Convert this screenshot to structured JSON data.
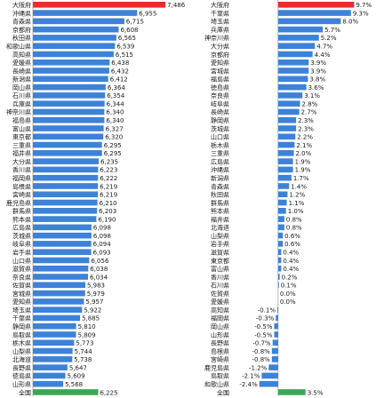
{
  "chart_data": [
    {
      "type": "bar",
      "orientation": "horizontal",
      "categories": [
        "大阪府",
        "沖縄県",
        "青森県",
        "京都府",
        "秋田県",
        "和歌山県",
        "高知県",
        "愛媛県",
        "長崎県",
        "新潟県",
        "岡山県",
        "石川県",
        "兵庫県",
        "神奈川県",
        "福島県",
        "富山県",
        "東京都",
        "三重県",
        "福井県",
        "大分県",
        "香川県",
        "福岡県",
        "島根県",
        "宮崎県",
        "鹿児島県",
        "群馬県",
        "熊本県",
        "広島県",
        "茨城県",
        "岐阜県",
        "岩手県",
        "山口県",
        "滋賀県",
        "奈良県",
        "佐賀県",
        "宮城県",
        "愛知県",
        "埼玉県",
        "千葉県",
        "静岡県",
        "鳥取県",
        "栃木県",
        "山梨県",
        "北海道",
        "長野県",
        "徳島県",
        "山形県",
        "全国"
      ],
      "values": [
        7486,
        6955,
        6715,
        6608,
        6565,
        6539,
        6515,
        6438,
        6432,
        6412,
        6364,
        6354,
        6344,
        6340,
        6340,
        6327,
        6320,
        6295,
        6295,
        6235,
        6223,
        6222,
        6219,
        6219,
        6210,
        6203,
        6190,
        6098,
        6098,
        6094,
        6093,
        6056,
        6038,
        6034,
        5983,
        5979,
        5957,
        5922,
        5885,
        5810,
        5809,
        5773,
        5744,
        5738,
        5647,
        5609,
        5568,
        6225
      ],
      "xlim": [
        5000,
        7500
      ],
      "thousands_separator": ",",
      "grid": false,
      "bar_color": "#3c82d8",
      "highlight_colors": [
        {
          "category": "大阪府",
          "color": "#ee2b2b"
        },
        {
          "category": "全国",
          "color": "#3aa757"
        }
      ]
    },
    {
      "type": "bar",
      "orientation": "horizontal",
      "categories": [
        "大阪府",
        "千葉県",
        "埼玉県",
        "兵庫県",
        "神奈川県",
        "大分県",
        "京都府",
        "愛知県",
        "宮城県",
        "福島県",
        "徳島県",
        "奈良県",
        "岐阜県",
        "長崎県",
        "静岡県",
        "茨城県",
        "山口県",
        "栃木県",
        "三重県",
        "広島県",
        "沖縄県",
        "新潟県",
        "青森県",
        "秋田県",
        "群馬県",
        "熊本県",
        "福井県",
        "北海道",
        "山梨県",
        "岩手県",
        "滋賀県",
        "東京都",
        "富山県",
        "香川県",
        "石川県",
        "佐賀県",
        "愛媛県",
        "高知県",
        "福岡県",
        "岡山県",
        "山形県",
        "長野県",
        "島根県",
        "宮崎県",
        "鹿児島県",
        "鳥取県",
        "和歌山県",
        "全国"
      ],
      "values": [
        9.7,
        9.3,
        8.0,
        5.7,
        5.2,
        4.7,
        4.4,
        3.9,
        3.9,
        3.8,
        3.6,
        3.1,
        2.8,
        2.7,
        2.3,
        2.3,
        2.2,
        2.1,
        2.0,
        1.9,
        1.9,
        1.7,
        1.4,
        1.2,
        1.1,
        1.0,
        0.8,
        0.8,
        0.6,
        0.6,
        0.4,
        0.4,
        0.4,
        0.2,
        0.1,
        0.0,
        0.0,
        -0.1,
        -0.3,
        -0.5,
        -0.5,
        -0.7,
        -0.8,
        -0.8,
        -1.2,
        -2.1,
        -2.4,
        3.5
      ],
      "xlim": [
        -6,
        10
      ],
      "decimals": 1,
      "value_suffix": "%",
      "grid": false,
      "bar_color": "#3c82d8",
      "highlight_colors": [
        {
          "category": "大阪府",
          "color": "#ee2b2b"
        },
        {
          "category": "全国",
          "color": "#3aa757"
        }
      ]
    }
  ]
}
